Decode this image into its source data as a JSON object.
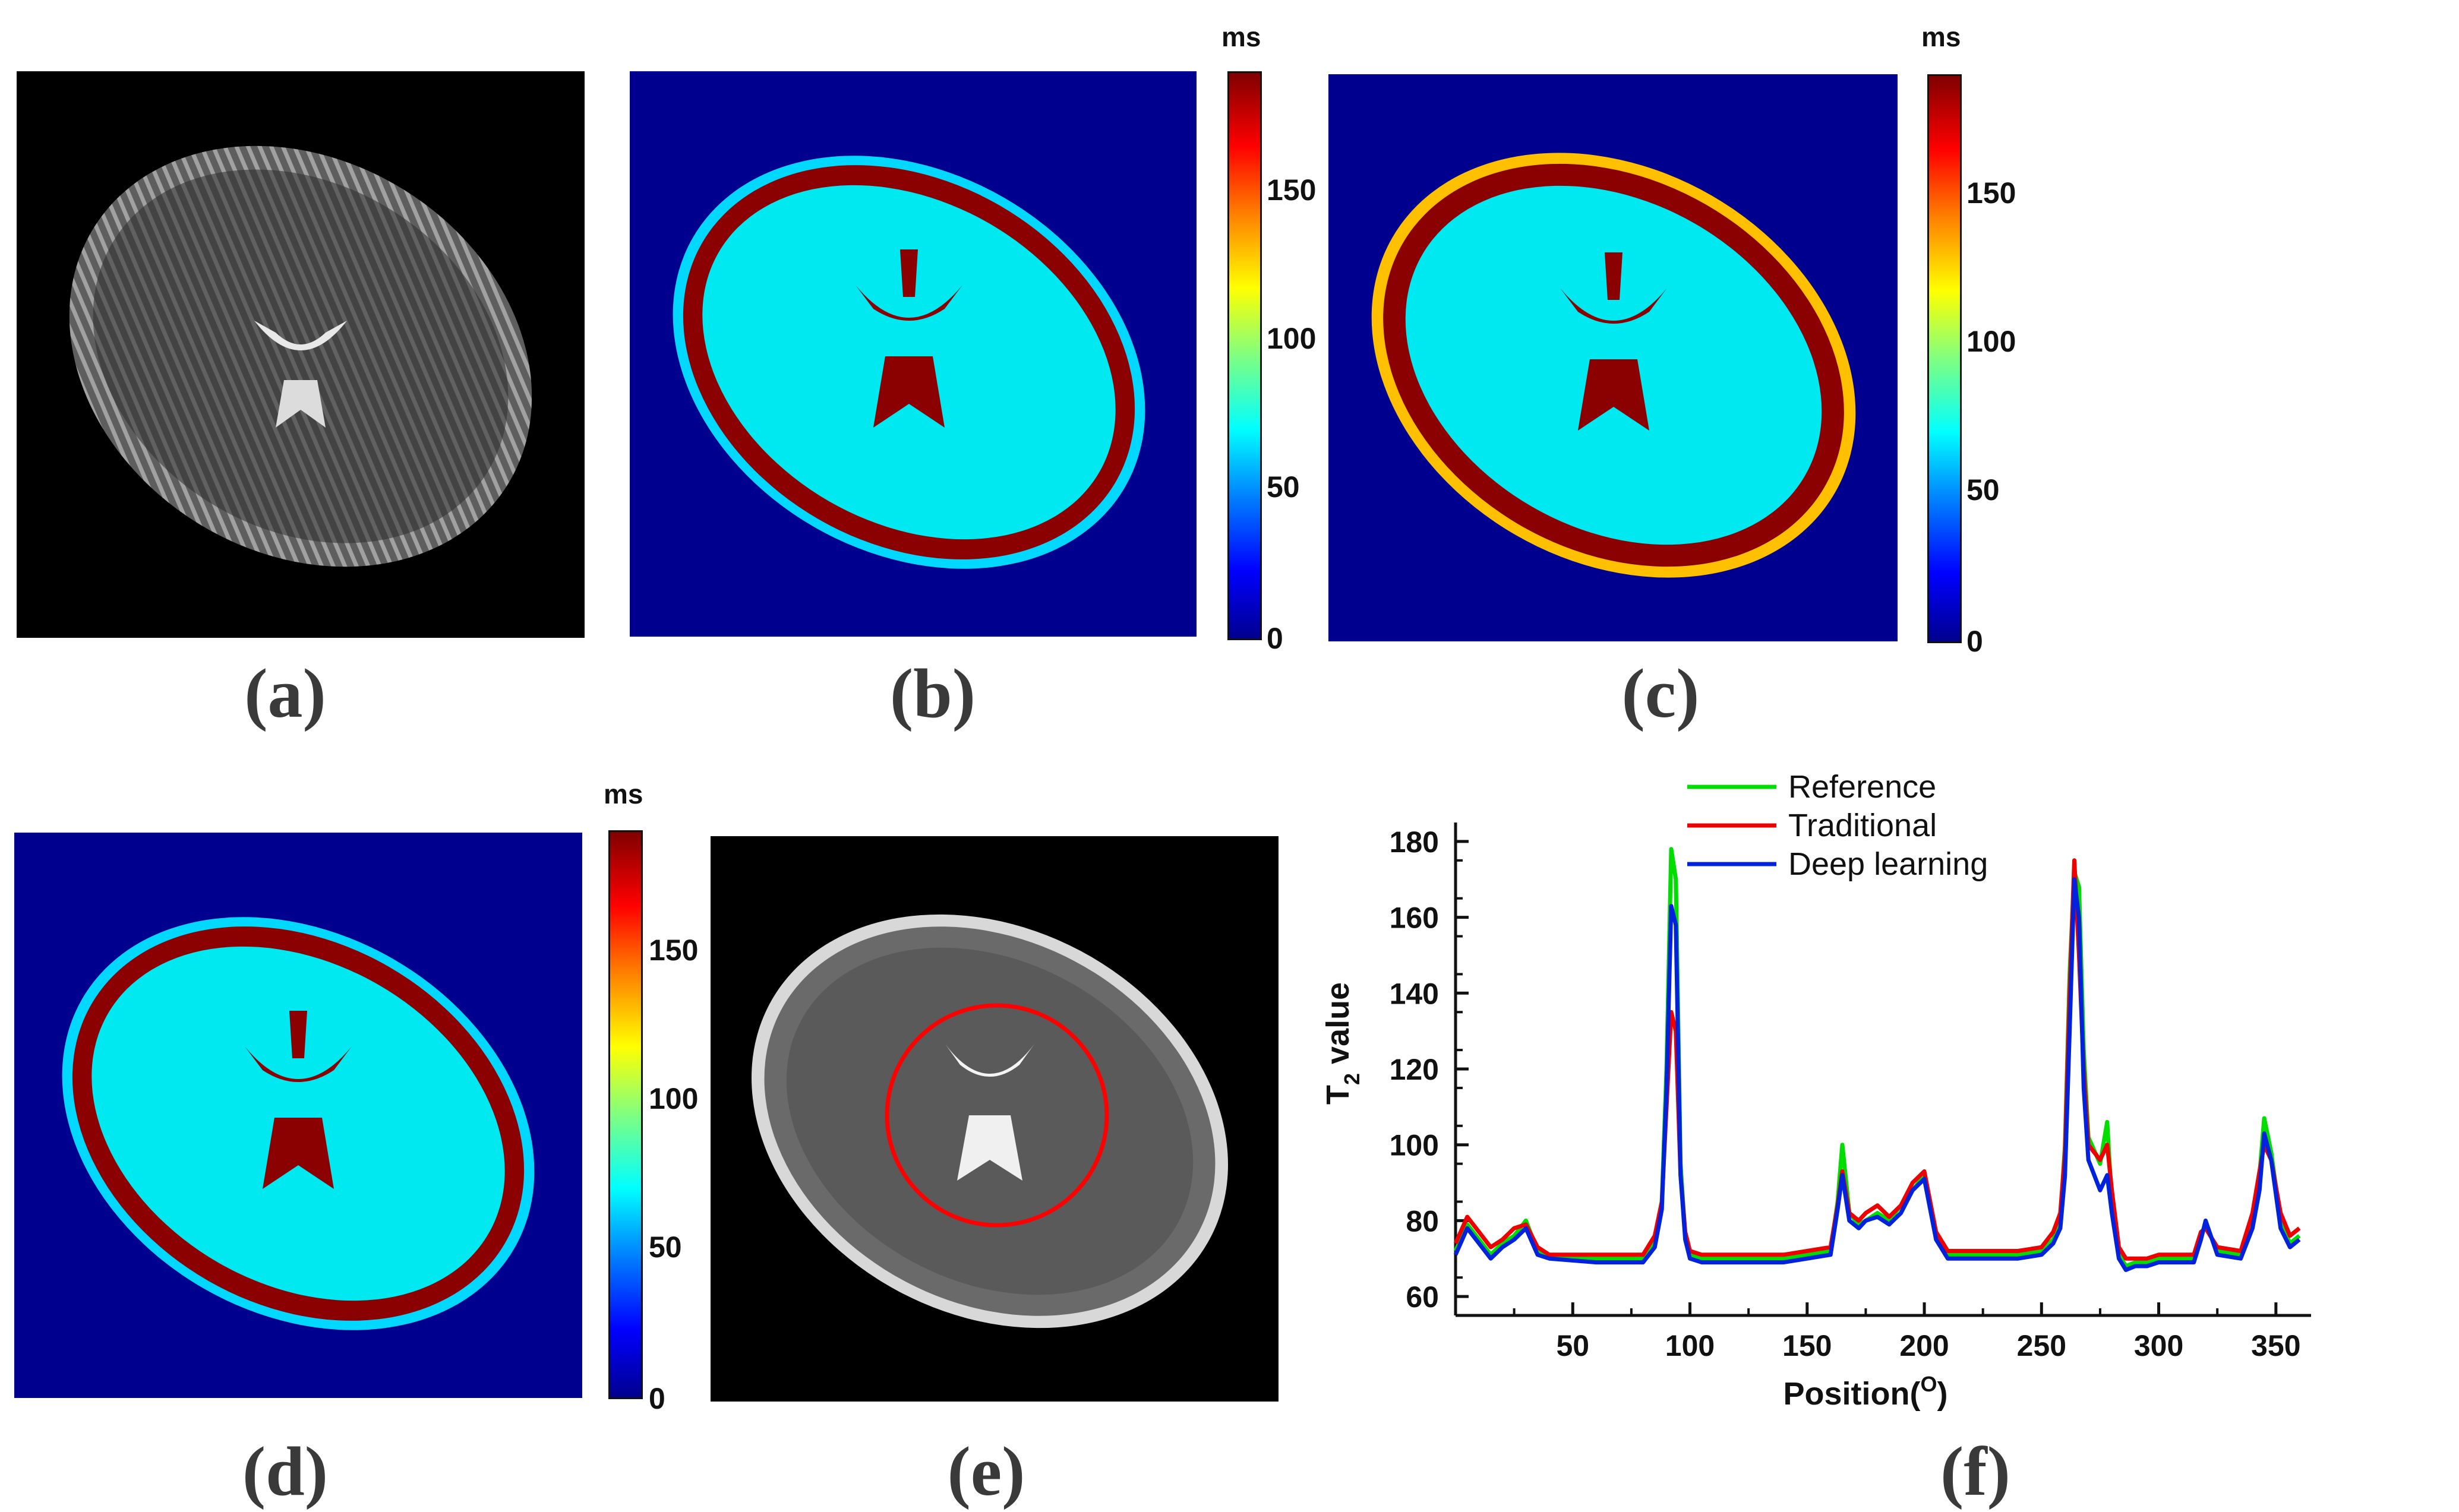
{
  "figure": {
    "panels": [
      {
        "id": "a",
        "label": "(a)"
      },
      {
        "id": "b",
        "label": "(b)"
      },
      {
        "id": "c",
        "label": "(c)"
      },
      {
        "id": "d",
        "label": "(d)"
      },
      {
        "id": "e",
        "label": "(e)"
      },
      {
        "id": "f",
        "label": "(f)"
      }
    ],
    "colorbar": {
      "unit": "ms",
      "ticks": [
        "150",
        "100",
        "50",
        "0"
      ]
    },
    "colors": {
      "map_background": "#00008f",
      "ventricle": "#8b0000",
      "csf_ring": "#a00000",
      "tissue": "#00e8f0",
      "accent_ring": "#ff0000"
    }
  },
  "chart_data": {
    "type": "line",
    "xlabel_main": "Position",
    "xlabel_unit": "O",
    "ylabel_main": "T",
    "ylabel_sub": "2",
    "ylabel_rest": " value",
    "xticks": [
      "50",
      "100",
      "150",
      "200",
      "250",
      "300",
      "350"
    ],
    "yticks": [
      "60",
      "80",
      "100",
      "120",
      "140",
      "160",
      "180"
    ],
    "xlim": [
      0,
      365
    ],
    "ylim": [
      55,
      185
    ],
    "legend_position": "top",
    "series": [
      {
        "name": "Reference",
        "color": "#00dd00",
        "x": [
          0,
          5,
          10,
          15,
          20,
          25,
          30,
          35,
          40,
          60,
          80,
          85,
          88,
          90,
          92,
          94,
          96,
          98,
          100,
          105,
          110,
          120,
          140,
          160,
          163,
          165,
          168,
          172,
          175,
          180,
          185,
          190,
          195,
          200,
          205,
          210,
          220,
          240,
          250,
          255,
          258,
          260,
          262,
          264,
          266,
          268,
          270,
          275,
          278,
          280,
          283,
          286,
          290,
          295,
          300,
          310,
          315,
          318,
          320,
          325,
          335,
          340,
          343,
          345,
          348,
          352,
          356,
          360
        ],
        "y": [
          72,
          79,
          75,
          71,
          74,
          76,
          80,
          72,
          71,
          70,
          70,
          74,
          85,
          120,
          178,
          170,
          95,
          76,
          71,
          70,
          70,
          70,
          70,
          72,
          85,
          100,
          82,
          79,
          80,
          82,
          80,
          84,
          88,
          92,
          76,
          71,
          71,
          71,
          72,
          75,
          80,
          100,
          145,
          172,
          168,
          125,
          102,
          95,
          106,
          85,
          71,
          68,
          69,
          69,
          70,
          70,
          70,
          76,
          79,
          72,
          71,
          80,
          92,
          107,
          98,
          80,
          74,
          76
        ]
      },
      {
        "name": "Traditional",
        "color": "#ee0000",
        "x": [
          0,
          5,
          10,
          15,
          20,
          25,
          30,
          35,
          40,
          60,
          80,
          85,
          88,
          90,
          92,
          94,
          96,
          98,
          100,
          105,
          110,
          120,
          140,
          160,
          163,
          165,
          168,
          172,
          175,
          180,
          185,
          190,
          195,
          200,
          205,
          210,
          220,
          240,
          250,
          255,
          258,
          260,
          262,
          264,
          266,
          268,
          270,
          275,
          278,
          280,
          283,
          286,
          290,
          295,
          300,
          310,
          315,
          318,
          320,
          325,
          335,
          340,
          343,
          345,
          348,
          352,
          356,
          360
        ],
        "y": [
          74,
          81,
          77,
          73,
          75,
          78,
          79,
          73,
          71,
          71,
          71,
          76,
          85,
          110,
          135,
          130,
          92,
          77,
          72,
          71,
          71,
          71,
          71,
          73,
          84,
          93,
          82,
          80,
          82,
          84,
          81,
          84,
          90,
          93,
          77,
          72,
          72,
          72,
          73,
          77,
          82,
          98,
          140,
          175,
          150,
          120,
          100,
          96,
          100,
          88,
          73,
          70,
          70,
          70,
          71,
          71,
          71,
          77,
          78,
          73,
          72,
          82,
          93,
          100,
          96,
          82,
          76,
          78
        ]
      },
      {
        "name": "Deep learning",
        "color": "#0022dd",
        "x": [
          0,
          5,
          10,
          15,
          20,
          25,
          30,
          35,
          40,
          60,
          80,
          85,
          88,
          90,
          92,
          94,
          96,
          98,
          100,
          105,
          110,
          120,
          140,
          160,
          163,
          165,
          168,
          172,
          175,
          180,
          185,
          190,
          195,
          200,
          205,
          210,
          220,
          240,
          250,
          255,
          258,
          260,
          262,
          264,
          266,
          268,
          270,
          275,
          278,
          280,
          283,
          286,
          290,
          295,
          300,
          310,
          315,
          318,
          320,
          325,
          335,
          340,
          343,
          345,
          348,
          352,
          356,
          360
        ],
        "y": [
          71,
          78,
          74,
          70,
          73,
          75,
          78,
          71,
          70,
          69,
          69,
          73,
          83,
          115,
          163,
          158,
          92,
          75,
          70,
          69,
          69,
          69,
          69,
          71,
          83,
          92,
          80,
          78,
          80,
          81,
          79,
          82,
          88,
          91,
          75,
          70,
          70,
          70,
          71,
          74,
          78,
          92,
          130,
          170,
          160,
          115,
          96,
          88,
          92,
          82,
          70,
          67,
          68,
          68,
          69,
          69,
          69,
          75,
          80,
          71,
          70,
          78,
          88,
          103,
          96,
          78,
          73,
          75
        ]
      }
    ]
  }
}
